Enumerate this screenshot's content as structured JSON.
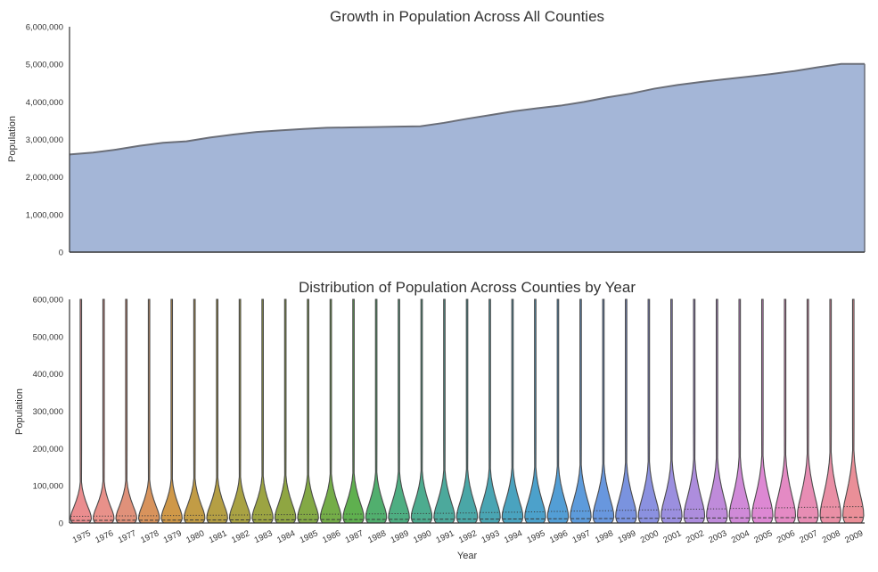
{
  "chart_data": [
    {
      "type": "area",
      "title": "Growth in Population Across All Counties",
      "xlabel": "",
      "ylabel": "Population",
      "ylim": [
        0,
        6000000
      ],
      "yticks": [
        0,
        1000000,
        2000000,
        3000000,
        4000000,
        5000000,
        6000000
      ],
      "ytick_labels": [
        "0",
        "1,000,000",
        "2,000,000",
        "3,000,000",
        "4,000,000",
        "5,000,000",
        "6,000,000"
      ],
      "x": [
        1975,
        1976,
        1977,
        1978,
        1979,
        1980,
        1981,
        1982,
        1983,
        1984,
        1985,
        1986,
        1987,
        1988,
        1989,
        1990,
        1991,
        1992,
        1993,
        1994,
        1995,
        1996,
        1997,
        1998,
        1999,
        2000,
        2001,
        2002,
        2003,
        2004,
        2005,
        2006,
        2007,
        2008,
        2009
      ],
      "values": [
        2600000,
        2650000,
        2730000,
        2830000,
        2910000,
        2950000,
        3050000,
        3130000,
        3200000,
        3240000,
        3280000,
        3310000,
        3320000,
        3330000,
        3340000,
        3350000,
        3440000,
        3550000,
        3650000,
        3750000,
        3830000,
        3900000,
        4000000,
        4120000,
        4220000,
        4350000,
        4450000,
        4530000,
        4600000,
        4670000,
        4740000,
        4820000,
        4920000,
        5010000,
        5010000
      ],
      "fill_color": "#a4b6d7",
      "line_color": "#6a6e78",
      "grid": false,
      "legend": "none"
    },
    {
      "type": "violin",
      "title": "Distribution of Population Across Counties by Year",
      "xlabel": "Year",
      "ylabel": "Population",
      "ylim": [
        0,
        600000
      ],
      "yticks": [
        0,
        100000,
        200000,
        300000,
        400000,
        500000,
        600000
      ],
      "ytick_labels": [
        "0",
        "100,000",
        "200,000",
        "300,000",
        "400,000",
        "500,000",
        "600,000"
      ],
      "categories": [
        "1975",
        "1976",
        "1977",
        "1978",
        "1979",
        "1980",
        "1981",
        "1982",
        "1983",
        "1984",
        "1985",
        "1986",
        "1987",
        "1988",
        "1989",
        "1990",
        "1991",
        "1992",
        "1993",
        "1994",
        "1995",
        "1996",
        "1997",
        "1998",
        "1999",
        "2000",
        "2001",
        "2002",
        "2003",
        "2004",
        "2005",
        "2006",
        "2007",
        "2008",
        "2009"
      ],
      "max_values": [
        600000,
        600000,
        600000,
        600000,
        600000,
        600000,
        600000,
        600000,
        600000,
        600000,
        600000,
        600000,
        600000,
        600000,
        600000,
        600000,
        600000,
        600000,
        600000,
        600000,
        600000,
        600000,
        600000,
        600000,
        600000,
        600000,
        600000,
        600000,
        600000,
        600000,
        600000,
        600000,
        600000,
        600000,
        600000
      ],
      "median_values": [
        7000,
        7200,
        7400,
        7600,
        7800,
        8000,
        8200,
        8400,
        8600,
        8800,
        9000,
        9200,
        9400,
        9600,
        9800,
        10000,
        10200,
        10400,
        10600,
        10800,
        11000,
        11300,
        11600,
        11900,
        12200,
        12500,
        12800,
        13100,
        13400,
        13700,
        14000,
        14300,
        14600,
        14900,
        15200
      ],
      "q3_values": [
        18000,
        18500,
        19000,
        19500,
        20000,
        20500,
        21000,
        21500,
        22000,
        22500,
        23000,
        23500,
        24000,
        24500,
        25000,
        25500,
        26000,
        27000,
        28000,
        29000,
        30000,
        31000,
        32000,
        33000,
        34000,
        35000,
        36000,
        37000,
        38000,
        39000,
        40000,
        41000,
        42000,
        43000,
        44000
      ],
      "body_top_values": [
        110000,
        112000,
        114000,
        116000,
        118000,
        120000,
        122000,
        124000,
        126000,
        128000,
        130000,
        132000,
        134000,
        136000,
        138000,
        140000,
        142000,
        144000,
        146000,
        148000,
        150000,
        153000,
        156000,
        159000,
        162000,
        165000,
        168000,
        171000,
        174000,
        177000,
        180000,
        183000,
        186000,
        190000,
        195000
      ],
      "colors": [
        "#ea8d8f",
        "#e8918a",
        "#e0917a",
        "#d8935c",
        "#cf9848",
        "#c29c45",
        "#b59f44",
        "#a9a243",
        "#9ca442",
        "#8fa642",
        "#83a945",
        "#74ad48",
        "#5fb04f",
        "#51af6e",
        "#4eae82",
        "#4dac8f",
        "#4ca99c",
        "#4aa7a7",
        "#4aa5b3",
        "#4aa3bf",
        "#4ca1cb",
        "#539ed5",
        "#5d9bdb",
        "#6897de",
        "#7a93df",
        "#8b91e0",
        "#9b8fdf",
        "#ad8ddd",
        "#bf8bda",
        "#d08ad8",
        "#dd88d3",
        "#e48ac4",
        "#e78db4",
        "#e98fa5",
        "#ea8f98"
      ],
      "grid": false,
      "legend": "none"
    }
  ]
}
